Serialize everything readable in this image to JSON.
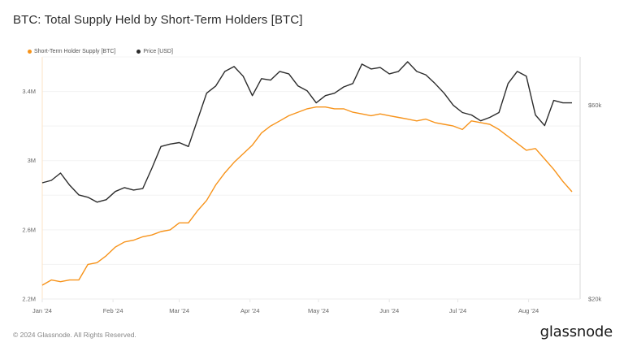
{
  "title": "BTC: Total Supply Held by Short-Term Holders [BTC]",
  "legend": [
    {
      "label": "Short-Term Holder Supply [BTC]",
      "color": "#f7931a"
    },
    {
      "label": "Price [USD]",
      "color": "#2b2b2b"
    }
  ],
  "footer": "© 2024 Glassnode. All Rights Reserved.",
  "brand": "glassnode",
  "chart_data": {
    "type": "line",
    "title": "BTC: Total Supply Held by Short-Term Holders [BTC]",
    "xlabel": "",
    "ylabel_left": "Short-Term Holder Supply [BTC]",
    "ylabel_right": "Price [USD]",
    "x_ticks": [
      "Jan '24",
      "Feb '24",
      "Mar '24",
      "Apr '24",
      "May '24",
      "Jun '24",
      "Jul '24",
      "Aug '24"
    ],
    "y_left_ticks": [
      "2.2M",
      "2.6M",
      "3M",
      "3.4M"
    ],
    "y_left_range": [
      2.2,
      3.6
    ],
    "y_right_ticks": [
      "$20k",
      "$60k"
    ],
    "y_right_range": [
      20,
      70
    ],
    "grid": true,
    "legend_position": "top-left",
    "x": [
      1,
      5,
      9,
      13,
      17,
      21,
      25,
      29,
      33,
      37,
      41,
      45,
      49,
      53,
      57,
      61,
      65,
      69,
      73,
      77,
      81,
      85,
      89,
      93,
      97,
      101,
      105,
      109,
      113,
      117,
      121,
      125,
      129,
      133,
      137,
      141,
      145,
      149,
      153,
      157,
      161,
      165,
      169,
      173,
      177,
      181,
      185,
      189,
      193,
      197,
      201,
      205,
      209,
      213,
      217,
      221,
      225,
      229,
      233
    ],
    "series": [
      {
        "name": "Short-Term Holder Supply [BTC]",
        "axis": "left",
        "unit": "M BTC",
        "color": "#f7931a",
        "values": [
          2.28,
          2.31,
          2.3,
          2.31,
          2.31,
          2.4,
          2.41,
          2.45,
          2.5,
          2.53,
          2.54,
          2.56,
          2.57,
          2.59,
          2.6,
          2.64,
          2.64,
          2.71,
          2.77,
          2.86,
          2.93,
          2.99,
          3.04,
          3.09,
          3.16,
          3.2,
          3.23,
          3.26,
          3.28,
          3.3,
          3.31,
          3.31,
          3.3,
          3.3,
          3.28,
          3.27,
          3.26,
          3.27,
          3.26,
          3.25,
          3.24,
          3.23,
          3.24,
          3.22,
          3.21,
          3.2,
          3.18,
          3.23,
          3.22,
          3.21,
          3.18,
          3.14,
          3.1,
          3.06,
          3.07,
          3.01,
          2.95,
          2.88,
          2.82
        ]
      },
      {
        "name": "Price [USD]",
        "axis": "right",
        "unit": "k USD",
        "color": "#2b2b2b",
        "values": [
          44.0,
          44.5,
          46.0,
          43.5,
          41.5,
          41.0,
          40.0,
          40.5,
          42.2,
          43.0,
          42.5,
          42.8,
          47.0,
          51.5,
          52.0,
          52.3,
          51.5,
          57.0,
          62.5,
          64.0,
          67.0,
          68.0,
          66.0,
          62.0,
          65.5,
          65.2,
          67.0,
          66.5,
          64.0,
          63.0,
          60.5,
          62.0,
          62.5,
          63.8,
          64.5,
          68.5,
          67.5,
          67.8,
          66.5,
          67.0,
          69.0,
          67.0,
          66.3,
          64.5,
          62.5,
          60.0,
          58.5,
          58.0,
          56.8,
          57.5,
          58.5,
          64.5,
          67.0,
          66.0,
          58.0,
          55.8,
          61.0,
          60.5,
          60.5
        ]
      }
    ]
  }
}
